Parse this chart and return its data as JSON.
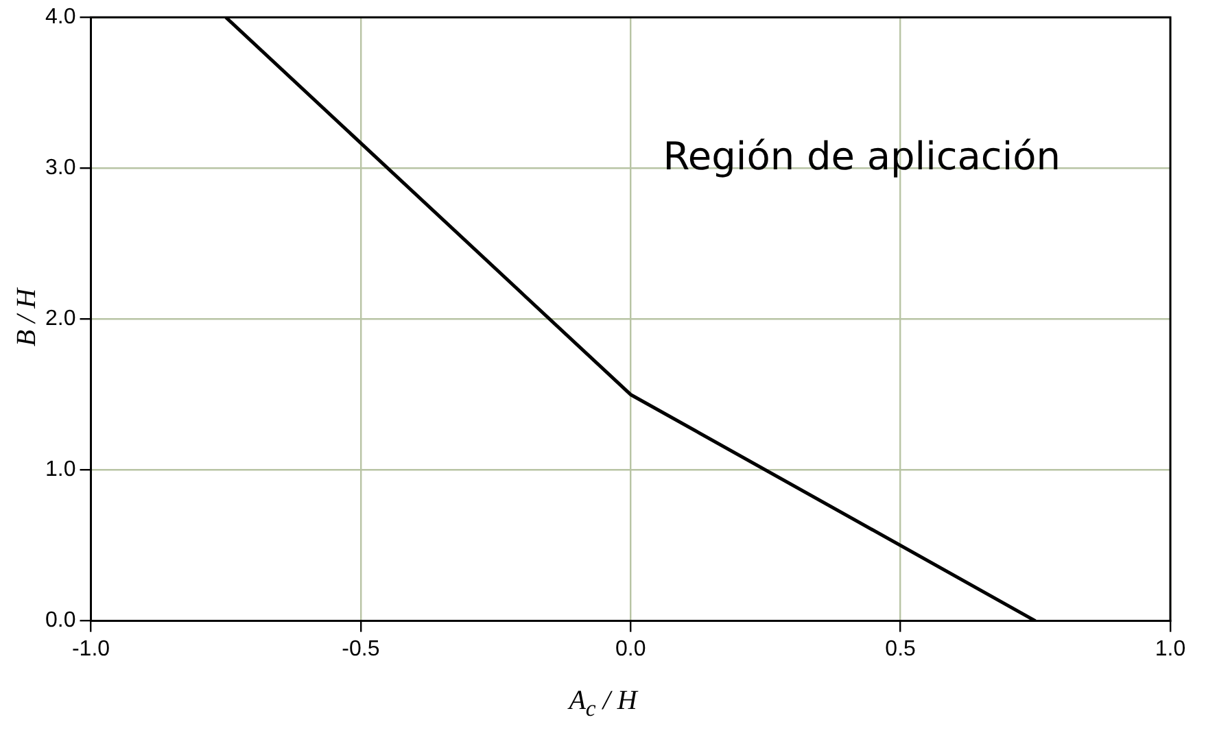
{
  "chart_data": {
    "type": "line",
    "xlabel": "A$_{c}$ / H",
    "ylabel": "B / H",
    "x": [
      -0.75,
      0,
      0.75
    ],
    "series": [
      {
        "color": "#000000",
        "values": [
          4.0,
          1.5,
          0.0
        ]
      }
    ],
    "xlim": [
      -1,
      1
    ],
    "xticks": [
      {
        "value": -1,
        "label": "-1.0"
      },
      {
        "value": -0.5,
        "label": "-0.5"
      },
      {
        "value": 0,
        "label": "0.0"
      },
      {
        "value": 0.5,
        "label": "0.5"
      },
      {
        "value": 1,
        "label": "1.0"
      }
    ],
    "ylim": [
      0,
      4
    ],
    "yticks": [
      {
        "value": 0,
        "label": "0.0"
      },
      {
        "value": 1,
        "label": "1.0"
      },
      {
        "value": 2,
        "label": "2.0"
      },
      {
        "value": 3,
        "label": "3.0"
      },
      {
        "value": 4,
        "label": "4.0"
      }
    ],
    "grid": true,
    "legend": false,
    "marker": "none",
    "line_style": "solid",
    "annotations": [
      "Región de aplicación"
    ]
  }
}
